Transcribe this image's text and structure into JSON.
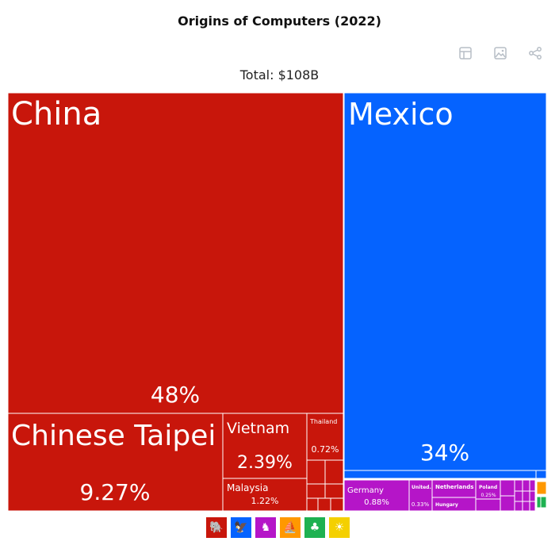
{
  "header": {
    "title": "Origins of Computers (2022)",
    "total_label": "Total: $108B"
  },
  "toolbar": {
    "icons": [
      "table-icon",
      "image-icon",
      "share-icon"
    ]
  },
  "chart_data": {
    "type": "treemap",
    "title": "Origins of Computers (2022)",
    "subtitle": "Total: $108B",
    "groups": [
      {
        "region": "asia",
        "color": "#c8160b",
        "items": [
          {
            "name": "China",
            "share": "48%"
          },
          {
            "name": "Chinese Taipei",
            "share": "9.27%"
          },
          {
            "name": "Vietnam",
            "share": "2.39%"
          },
          {
            "name": "Malaysia",
            "share": "1.22%"
          },
          {
            "name": "Thailand",
            "share": "0.72%"
          }
        ]
      },
      {
        "region": "north-america",
        "color": "#0563ff",
        "items": [
          {
            "name": "Mexico",
            "share": "34%"
          }
        ]
      },
      {
        "region": "europe",
        "color": "#b515c8",
        "items": [
          {
            "name": "Germany",
            "share": "0.88%"
          },
          {
            "name": "United...",
            "share": "0.33%"
          },
          {
            "name": "Netherlands",
            "share": ""
          },
          {
            "name": "Hungary",
            "share": ""
          },
          {
            "name": "Poland",
            "share": "0.25%"
          }
        ]
      },
      {
        "region": "oceania",
        "color": "#ff9800",
        "items": []
      },
      {
        "region": "south-america",
        "color": "#1eb151",
        "items": []
      },
      {
        "region": "africa",
        "color": "#f4d000",
        "items": []
      }
    ]
  },
  "legend": [
    {
      "icon": "asia-icon",
      "color": "#c8160b"
    },
    {
      "icon": "north-america-icon",
      "color": "#0563ff"
    },
    {
      "icon": "europe-icon",
      "color": "#b515c8"
    },
    {
      "icon": "oceania-icon",
      "color": "#ff9800"
    },
    {
      "icon": "south-america-icon",
      "color": "#1eb151"
    },
    {
      "icon": "africa-icon",
      "color": "#f4d000"
    }
  ]
}
